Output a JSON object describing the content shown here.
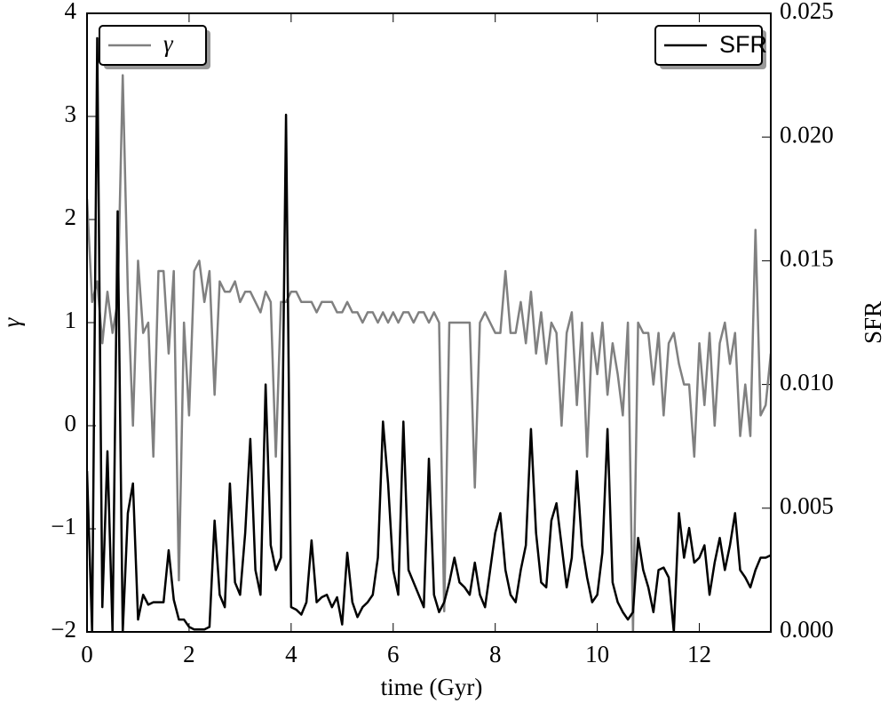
{
  "chart_data": {
    "type": "line",
    "xlabel": "time (Gyr)",
    "ylabel": "γ",
    "y2label": "SFR",
    "xlim": [
      0,
      13.4
    ],
    "xticks": [
      0,
      2,
      4,
      6,
      8,
      10,
      12
    ],
    "ylim": [
      -2,
      4
    ],
    "yticks": [
      {
        "value": -2,
        "label": "−2"
      },
      {
        "value": -1,
        "label": "−1"
      },
      0,
      1,
      2,
      3,
      4
    ],
    "y2lim": [
      0,
      0.025
    ],
    "y2ticks": [
      {
        "value": 0,
        "label": "0.000"
      },
      0.005,
      {
        "value": 0.01,
        "label": "0.010"
      },
      0.015,
      {
        "value": 0.02,
        "label": "0.020"
      },
      0.025
    ],
    "x": [
      0,
      0.1,
      0.2,
      0.3,
      0.4,
      0.5,
      0.6,
      0.7,
      0.8,
      0.9,
      1,
      1.1,
      1.2,
      1.3,
      1.4,
      1.5,
      1.6,
      1.7,
      1.8,
      1.9,
      2,
      2.1,
      2.2,
      2.3,
      2.4,
      2.5,
      2.6,
      2.7,
      2.8,
      2.9,
      3,
      3.1,
      3.2,
      3.3,
      3.4,
      3.5,
      3.6,
      3.7,
      3.8,
      3.9,
      4,
      4.1,
      4.2,
      4.3,
      4.4,
      4.5,
      4.6,
      4.7,
      4.8,
      4.9,
      5,
      5.1,
      5.2,
      5.3,
      5.4,
      5.5,
      5.6,
      5.7,
      5.8,
      5.9,
      6,
      6.1,
      6.2,
      6.3,
      6.4,
      6.5,
      6.6,
      6.7,
      6.8,
      6.9,
      7,
      7.1,
      7.2,
      7.3,
      7.4,
      7.5,
      7.6,
      7.7,
      7.8,
      7.9,
      8,
      8.1,
      8.2,
      8.3,
      8.4,
      8.5,
      8.6,
      8.7,
      8.8,
      8.9,
      9,
      9.1,
      9.2,
      9.3,
      9.4,
      9.5,
      9.6,
      9.7,
      9.8,
      9.9,
      10,
      10.1,
      10.2,
      10.3,
      10.4,
      10.5,
      10.6,
      10.7,
      10.8,
      10.9,
      11,
      11.1,
      11.2,
      11.3,
      11.4,
      11.5,
      11.6,
      11.7,
      11.8,
      11.9,
      12,
      12.1,
      12.2,
      12.3,
      12.4,
      12.5,
      12.6,
      12.7,
      12.8,
      12.9,
      13,
      13.1,
      13.2,
      13.3,
      13.4
    ],
    "series": [
      {
        "name": "γ",
        "color": "#808080",
        "legend_loc": "upper left",
        "values": [
          2.2,
          1.2,
          1.4,
          0.8,
          1.3,
          0.9,
          1.2,
          3.4,
          1.3,
          0,
          1.6,
          0.9,
          1,
          -0.3,
          1.5,
          1.5,
          0.7,
          1.5,
          -1.5,
          1,
          0.1,
          1.5,
          1.6,
          1.2,
          1.5,
          0.3,
          1.4,
          1.3,
          1.3,
          1.4,
          1.2,
          1.3,
          1.3,
          1.2,
          1.1,
          1.3,
          1.2,
          -0.3,
          1.2,
          1.2,
          1.3,
          1.3,
          1.2,
          1.2,
          1.2,
          1.1,
          1.2,
          1.2,
          1.2,
          1.1,
          1.1,
          1.2,
          1.1,
          1.1,
          1,
          1.1,
          1.1,
          1,
          1.1,
          1,
          1.1,
          1,
          1.1,
          1.1,
          1,
          1.1,
          1.1,
          1,
          1.1,
          1,
          -1.8,
          1,
          1,
          1,
          1,
          1,
          -0.6,
          1,
          1.1,
          1,
          0.9,
          0.9,
          1.5,
          0.9,
          0.9,
          1.2,
          0.8,
          1.3,
          0.7,
          1.1,
          0.6,
          1,
          0.9,
          0,
          0.9,
          1.1,
          0.2,
          1,
          -0.3,
          0.9,
          0.5,
          1,
          0.3,
          0.8,
          0.5,
          0.1,
          1,
          -2,
          1,
          0.9,
          0.9,
          0.4,
          0.9,
          0.1,
          0.8,
          0.9,
          0.6,
          0.4,
          0.4,
          -0.3,
          0.8,
          0.2,
          0.9,
          0,
          0.8,
          1,
          0.6,
          0.9,
          -0.1,
          0.4,
          -0.1,
          1.9,
          0.1,
          0.2,
          0.7
        ]
      },
      {
        "name": "SFR",
        "color": "#000000",
        "axis": "y2",
        "legend_loc": "upper right",
        "values": [
          0.0065,
          0,
          0.024,
          0.001,
          0.0073,
          0,
          0.017,
          0,
          0.0048,
          0.006,
          0.0005,
          0.0015,
          0.0011,
          0.0012,
          0.0012,
          0.0012,
          0.0033,
          0.0013,
          0.0005,
          0.0005,
          0.0002,
          0.0001,
          0.0001,
          0.0001,
          0.0002,
          0.0045,
          0.0015,
          0.001,
          0.006,
          0.002,
          0.0015,
          0.004,
          0.0078,
          0.0025,
          0.0015,
          0.01,
          0.0035,
          0.0025,
          0.003,
          0.0209,
          0.001,
          0.0009,
          0.0007,
          0.0012,
          0.0037,
          0.0012,
          0.0014,
          0.0015,
          0.001,
          0.0014,
          0.0003,
          0.0032,
          0.0012,
          0.0006,
          0.001,
          0.0012,
          0.0015,
          0.003,
          0.0085,
          0.006,
          0.0025,
          0.0015,
          0.0085,
          0.0025,
          0.002,
          0.0015,
          0.001,
          0.007,
          0.0015,
          0.0008,
          0.0012,
          0.002,
          0.003,
          0.002,
          0.0018,
          0.0015,
          0.0028,
          0.0015,
          0.001,
          0.0025,
          0.004,
          0.0048,
          0.0025,
          0.0015,
          0.0012,
          0.0025,
          0.0035,
          0.0082,
          0.004,
          0.002,
          0.0018,
          0.0045,
          0.0052,
          0.0035,
          0.0018,
          0.003,
          0.0065,
          0.0035,
          0.0022,
          0.0012,
          0.0015,
          0.0032,
          0.0082,
          0.002,
          0.0012,
          0.0008,
          0.0005,
          0.0008,
          0.0038,
          0.0025,
          0.0018,
          0.0008,
          0.0025,
          0.0026,
          0.0022,
          0,
          0.0048,
          0.003,
          0.0042,
          0.0028,
          0.003,
          0.0035,
          0.0015,
          0.0028,
          0.0038,
          0.0025,
          0.0035,
          0.0048,
          0.0025,
          0.0022,
          0.0018,
          0.0025,
          0.003,
          0.003,
          0.0031
        ]
      }
    ]
  }
}
